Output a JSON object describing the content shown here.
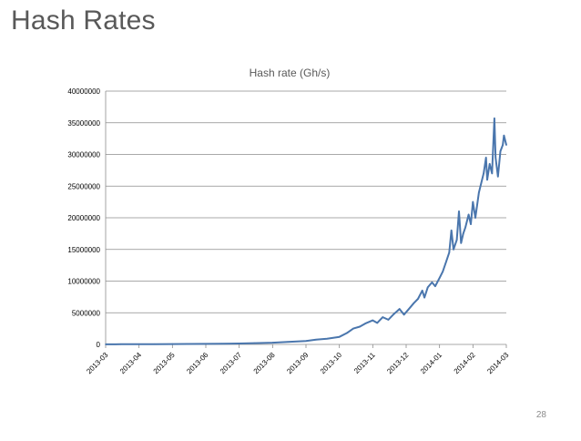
{
  "slide": {
    "title": "Hash Rates",
    "page_number": "28"
  },
  "colors": {
    "series": "#4a76ad",
    "grid": "#8c8c8c",
    "axis": "#8c8c8c",
    "title_text": "#595959",
    "label_text": "#000000"
  },
  "chart_data": {
    "type": "line",
    "title": "Hash rate (Gh/s)",
    "xlabel": "",
    "ylabel": "",
    "ylim": [
      0,
      40000000
    ],
    "yticks": [
      0,
      5000000,
      10000000,
      15000000,
      20000000,
      25000000,
      30000000,
      35000000,
      40000000
    ],
    "ytick_labels": [
      "0",
      "5000000",
      "10000000",
      "15000000",
      "20000000",
      "25000000",
      "30000000",
      "35000000",
      "40000000"
    ],
    "xtick_labels": [
      "2013-03",
      "2013-04",
      "2013-05",
      "2013-06",
      "2013-07",
      "2013-08",
      "2013-09",
      "2013-10",
      "2013-11",
      "2013-12",
      "2014-01",
      "2014-02",
      "2014-03"
    ],
    "grid": true,
    "legend": "none",
    "series": [
      {
        "points": [
          [
            "2013-03-01",
            20000
          ],
          [
            "2013-03-15",
            25000
          ],
          [
            "2013-04-01",
            40000
          ],
          [
            "2013-04-15",
            50000
          ],
          [
            "2013-05-01",
            60000
          ],
          [
            "2013-05-15",
            70000
          ],
          [
            "2013-06-01",
            90000
          ],
          [
            "2013-06-15",
            110000
          ],
          [
            "2013-07-01",
            150000
          ],
          [
            "2013-07-15",
            200000
          ],
          [
            "2013-08-01",
            280000
          ],
          [
            "2013-08-15",
            400000
          ],
          [
            "2013-09-01",
            550000
          ],
          [
            "2013-09-10",
            750000
          ],
          [
            "2013-09-20",
            900000
          ],
          [
            "2013-10-01",
            1200000
          ],
          [
            "2013-10-08",
            1800000
          ],
          [
            "2013-10-14",
            2500000
          ],
          [
            "2013-10-20",
            2800000
          ],
          [
            "2013-10-25",
            3300000
          ],
          [
            "2013-11-01",
            3800000
          ],
          [
            "2013-11-05",
            3400000
          ],
          [
            "2013-11-10",
            4300000
          ],
          [
            "2013-11-15",
            3900000
          ],
          [
            "2013-11-20",
            4800000
          ],
          [
            "2013-11-25",
            5600000
          ],
          [
            "2013-11-29",
            4700000
          ],
          [
            "2013-12-03",
            5500000
          ],
          [
            "2013-12-08",
            6500000
          ],
          [
            "2013-12-12",
            7200000
          ],
          [
            "2013-12-16",
            8500000
          ],
          [
            "2013-12-18",
            7400000
          ],
          [
            "2013-12-21",
            9000000
          ],
          [
            "2013-12-25",
            9800000
          ],
          [
            "2013-12-28",
            9200000
          ],
          [
            "2014-01-01",
            10500000
          ],
          [
            "2014-01-04",
            11500000
          ],
          [
            "2014-01-07",
            13000000
          ],
          [
            "2014-01-10",
            14500000
          ],
          [
            "2014-01-12",
            18000000
          ],
          [
            "2014-01-14",
            15000000
          ],
          [
            "2014-01-17",
            16500000
          ],
          [
            "2014-01-19",
            21000000
          ],
          [
            "2014-01-21",
            16000000
          ],
          [
            "2014-01-23",
            17500000
          ],
          [
            "2014-01-25",
            18500000
          ],
          [
            "2014-01-28",
            20500000
          ],
          [
            "2014-01-30",
            19000000
          ],
          [
            "2014-02-01",
            22500000
          ],
          [
            "2014-02-03",
            20000000
          ],
          [
            "2014-02-06",
            24000000
          ],
          [
            "2014-02-08",
            25500000
          ],
          [
            "2014-02-10",
            27000000
          ],
          [
            "2014-02-12",
            29500000
          ],
          [
            "2014-02-13",
            26000000
          ],
          [
            "2014-02-15",
            28500000
          ],
          [
            "2014-02-17",
            27000000
          ],
          [
            "2014-02-19",
            35700000
          ],
          [
            "2014-02-20",
            29500000
          ],
          [
            "2014-02-22",
            26500000
          ],
          [
            "2014-02-24",
            30500000
          ],
          [
            "2014-02-26",
            31500000
          ],
          [
            "2014-02-27",
            33000000
          ],
          [
            "2014-03-01",
            31500000
          ]
        ]
      }
    ]
  }
}
